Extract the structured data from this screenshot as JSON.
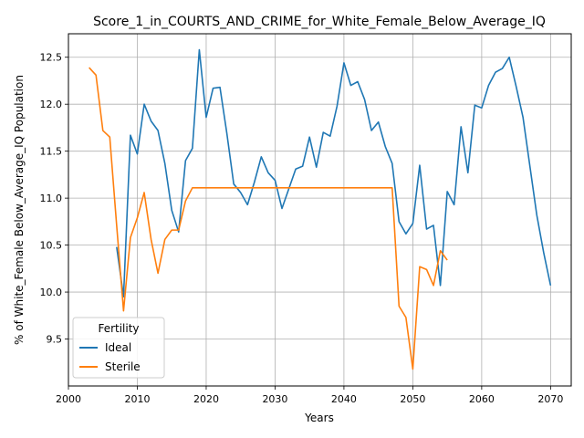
{
  "chart_data": {
    "type": "line",
    "title": "Score_1_in_COURTS_AND_CRIME_for_White_Female_Below_Average_IQ",
    "xlabel": "Years",
    "ylabel": "% of White_Female Below_Average_IQ Population",
    "xlim": [
      2000,
      2073
    ],
    "ylim": [
      9.0,
      12.75
    ],
    "xticks": [
      2000,
      2010,
      2020,
      2030,
      2040,
      2050,
      2060,
      2070
    ],
    "yticks": [
      9.5,
      10.0,
      10.5,
      11.0,
      11.5,
      12.0,
      12.5
    ],
    "ytick_labels": [
      "9.5",
      "10.0",
      "10.5",
      "11.0",
      "11.5",
      "12.0",
      "12.5"
    ],
    "grid": true,
    "legend": {
      "title": "Fertility",
      "placement": "lower-left"
    },
    "series": [
      {
        "name": "Ideal",
        "color": "#1f77b4",
        "points": [
          [
            2007,
            10.48
          ],
          [
            2008,
            9.95
          ],
          [
            2009,
            11.67
          ],
          [
            2010,
            11.47
          ],
          [
            2011,
            12.0
          ],
          [
            2012,
            11.82
          ],
          [
            2013,
            11.72
          ],
          [
            2014,
            11.37
          ],
          [
            2015,
            10.87
          ],
          [
            2016,
            10.64
          ],
          [
            2017,
            11.4
          ],
          [
            2018,
            11.53
          ],
          [
            2019,
            12.58
          ],
          [
            2020,
            11.86
          ],
          [
            2021,
            12.17
          ],
          [
            2022,
            12.18
          ],
          [
            2023,
            11.69
          ],
          [
            2024,
            11.15
          ],
          [
            2025,
            11.06
          ],
          [
            2026,
            10.93
          ],
          [
            2027,
            11.17
          ],
          [
            2028,
            11.44
          ],
          [
            2029,
            11.27
          ],
          [
            2030,
            11.19
          ],
          [
            2031,
            10.89
          ],
          [
            2032,
            11.1
          ],
          [
            2033,
            11.31
          ],
          [
            2034,
            11.34
          ],
          [
            2035,
            11.65
          ],
          [
            2036,
            11.33
          ],
          [
            2037,
            11.7
          ],
          [
            2038,
            11.66
          ],
          [
            2039,
            11.98
          ],
          [
            2040,
            12.44
          ],
          [
            2041,
            12.2
          ],
          [
            2042,
            12.24
          ],
          [
            2043,
            12.05
          ],
          [
            2044,
            11.72
          ],
          [
            2045,
            11.81
          ],
          [
            2046,
            11.55
          ],
          [
            2047,
            11.37
          ],
          [
            2048,
            10.75
          ],
          [
            2049,
            10.62
          ],
          [
            2050,
            10.73
          ],
          [
            2051,
            11.35
          ],
          [
            2052,
            10.67
          ],
          [
            2053,
            10.71
          ],
          [
            2054,
            10.07
          ],
          [
            2055,
            11.07
          ],
          [
            2056,
            10.93
          ],
          [
            2057,
            11.76
          ],
          [
            2058,
            11.27
          ],
          [
            2059,
            11.99
          ],
          [
            2060,
            11.96
          ],
          [
            2061,
            12.2
          ],
          [
            2062,
            12.34
          ],
          [
            2063,
            12.38
          ],
          [
            2064,
            12.5
          ],
          [
            2065,
            12.19
          ],
          [
            2066,
            11.86
          ],
          [
            2067,
            11.34
          ],
          [
            2068,
            10.82
          ],
          [
            2069,
            10.42
          ],
          [
            2070,
            10.07
          ]
        ]
      },
      {
        "name": "Sterile",
        "color": "#ff7f0e",
        "points": [
          [
            2003,
            12.39
          ],
          [
            2004,
            12.31
          ],
          [
            2005,
            11.72
          ],
          [
            2006,
            11.65
          ],
          [
            2007,
            10.71
          ],
          [
            2008,
            9.8
          ],
          [
            2009,
            10.58
          ],
          [
            2010,
            10.79
          ],
          [
            2011,
            11.06
          ],
          [
            2012,
            10.56
          ],
          [
            2013,
            10.2
          ],
          [
            2014,
            10.56
          ],
          [
            2015,
            10.66
          ],
          [
            2016,
            10.66
          ],
          [
            2017,
            10.97
          ],
          [
            2018,
            11.11
          ],
          [
            2019,
            11.11
          ],
          [
            2020,
            11.11
          ],
          [
            2021,
            11.11
          ],
          [
            2022,
            11.11
          ],
          [
            2023,
            11.11
          ],
          [
            2024,
            11.11
          ],
          [
            2025,
            11.11
          ],
          [
            2026,
            11.11
          ],
          [
            2027,
            11.11
          ],
          [
            2028,
            11.11
          ],
          [
            2029,
            11.11
          ],
          [
            2030,
            11.11
          ],
          [
            2031,
            11.11
          ],
          [
            2032,
            11.11
          ],
          [
            2033,
            11.11
          ],
          [
            2034,
            11.11
          ],
          [
            2035,
            11.11
          ],
          [
            2036,
            11.11
          ],
          [
            2037,
            11.11
          ],
          [
            2038,
            11.11
          ],
          [
            2039,
            11.11
          ],
          [
            2040,
            11.11
          ],
          [
            2041,
            11.11
          ],
          [
            2042,
            11.11
          ],
          [
            2043,
            11.11
          ],
          [
            2044,
            11.11
          ],
          [
            2045,
            11.11
          ],
          [
            2046,
            11.11
          ],
          [
            2047,
            11.11
          ],
          [
            2048,
            9.85
          ],
          [
            2049,
            9.73
          ],
          [
            2050,
            9.18
          ],
          [
            2051,
            10.27
          ],
          [
            2052,
            10.24
          ],
          [
            2053,
            10.07
          ],
          [
            2054,
            10.44
          ],
          [
            2055,
            10.34
          ]
        ]
      }
    ]
  }
}
